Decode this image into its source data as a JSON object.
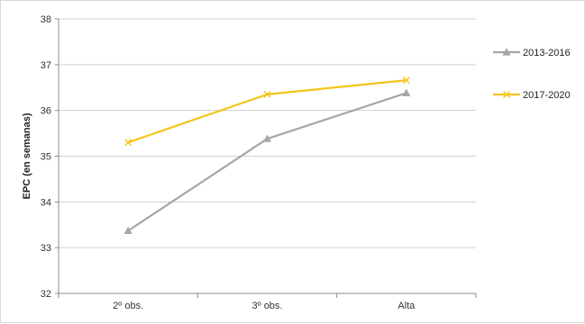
{
  "chart_data": {
    "type": "line",
    "title": "",
    "xlabel": "",
    "ylabel": "EPC (en semanas)",
    "categories": [
      "2º obs.",
      "3º obs.",
      "Alta"
    ],
    "ylim": [
      32,
      38
    ],
    "yticks": [
      32,
      33,
      34,
      35,
      36,
      37,
      38
    ],
    "grid": true,
    "legend_position": "right",
    "series": [
      {
        "name": "2013-2016",
        "values": [
          33.37,
          35.38,
          36.38
        ],
        "color": "#a6a6a6",
        "marker": "triangle"
      },
      {
        "name": "2017-2020",
        "values": [
          35.3,
          36.35,
          36.66
        ],
        "color": "#f5c518",
        "marker": "x"
      }
    ]
  }
}
